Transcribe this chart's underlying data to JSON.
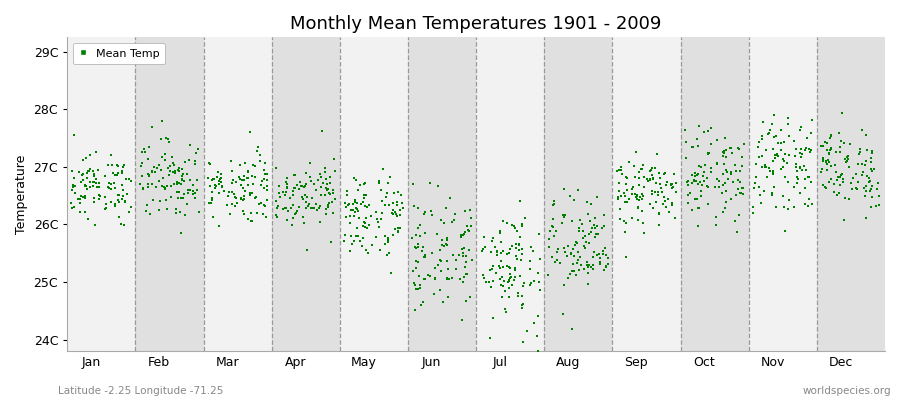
{
  "title": "Monthly Mean Temperatures 1901 - 2009",
  "ylabel": "Temperature",
  "footer_left": "Latitude -2.25 Longitude -71.25",
  "footer_right": "worldspecies.org",
  "months": [
    "Jan",
    "Feb",
    "Mar",
    "Apr",
    "May",
    "Jun",
    "Jul",
    "Aug",
    "Sep",
    "Oct",
    "Nov",
    "Dec"
  ],
  "ylim": [
    23.8,
    29.25
  ],
  "yticks": [
    24,
    25,
    26,
    27,
    28,
    29
  ],
  "ytick_labels": [
    "24C",
    "25C",
    "26C",
    "27C",
    "28C",
    "29C"
  ],
  "n_years": 109,
  "start_year": 1901,
  "month_means": [
    26.65,
    26.8,
    26.65,
    26.55,
    26.15,
    25.5,
    25.3,
    25.6,
    26.55,
    26.85,
    27.05,
    26.95
  ],
  "month_stds": [
    0.28,
    0.35,
    0.3,
    0.28,
    0.38,
    0.5,
    0.55,
    0.45,
    0.3,
    0.38,
    0.38,
    0.35
  ],
  "marker_color": "#008000",
  "marker_size": 3.5,
  "bg_color_light": "#f2f2f2",
  "bg_color_dark": "#e0e0e0",
  "legend_label": "Mean Temp",
  "dashed_line_color": "#999999",
  "title_fontsize": 13,
  "axis_label_fontsize": 9,
  "tick_fontsize": 9,
  "legend_fontsize": 8
}
